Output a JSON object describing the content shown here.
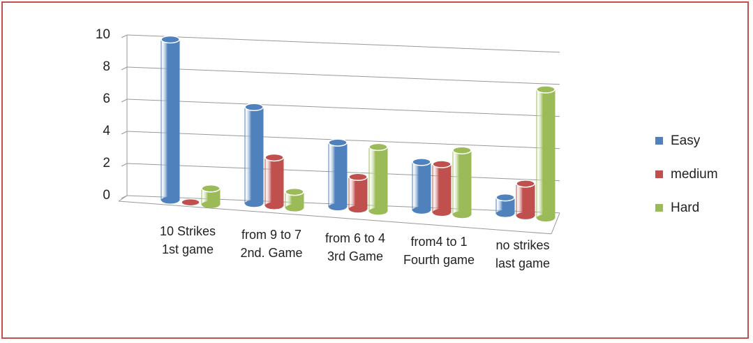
{
  "chart_data": {
    "type": "bar3d",
    "categories": [
      "10 Strikes 1st game",
      "from 9 to 7  2nd. Game",
      "from 6 to 4 3rd Game",
      "from4 to 1  Fourth game",
      "no strikes last game"
    ],
    "series": [
      {
        "name": "Easy",
        "color": "#4f81bd",
        "values": [
          10,
          6,
          4,
          3,
          1
        ]
      },
      {
        "name": "medium",
        "color": "#c0504d",
        "values": [
          0,
          3,
          2,
          3,
          2
        ]
      },
      {
        "name": "Hard",
        "color": "#9bbb59",
        "values": [
          1,
          1,
          4,
          4,
          8
        ]
      }
    ],
    "ylim": [
      0,
      10
    ],
    "yticks": [
      0,
      2,
      4,
      6,
      8,
      10
    ],
    "grid": true,
    "legend": "right"
  }
}
